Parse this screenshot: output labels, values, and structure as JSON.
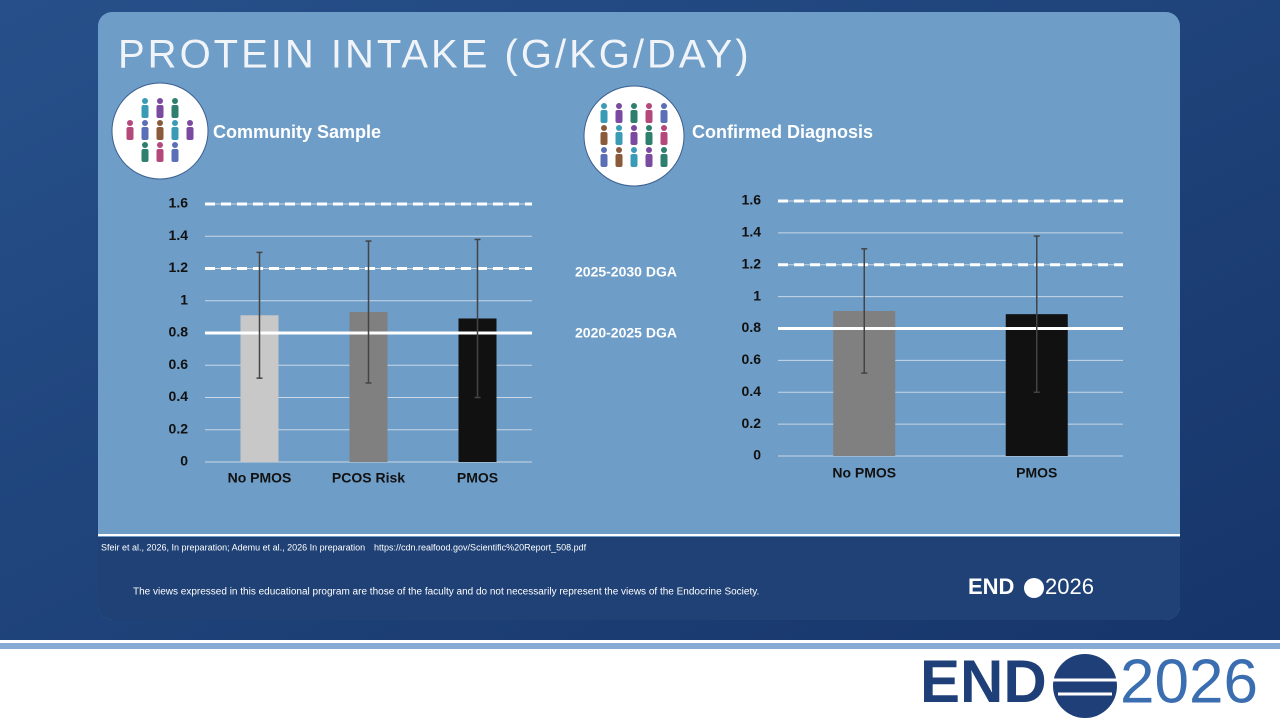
{
  "slide": {
    "title": "PROTEIN INTAKE (G/KG/DAY)",
    "annotations": [
      "2025-2030 DGA",
      "2020-2025 DGA"
    ],
    "citation": "Sfeir et al., 2026, In preparation; Ademu et al., 2026 In preparation",
    "url": "https://cdn.realfood.gov/Scientific%20Report_508.pdf",
    "disclaimer": "The views expressed in this educational program are those of the faculty and do not necessarily represent the views of the Endocrine Society.",
    "logo": {
      "left": "END",
      "right": "2026"
    }
  },
  "chart_data": [
    {
      "type": "bar",
      "title": "Community Sample",
      "categories": [
        "No PMOS",
        "PCOS Risk",
        "PMOS"
      ],
      "values": [
        0.91,
        0.93,
        0.89
      ],
      "errors": [
        0.39,
        0.44,
        0.49
      ],
      "colors": [
        "#c8c8c8",
        "#808080",
        "#111111"
      ],
      "ylim": [
        0,
        1.6
      ],
      "yticks": [
        0,
        0.2,
        0.4,
        0.6,
        0.8,
        1,
        1.2,
        1.4,
        1.6
      ],
      "grid": true,
      "reference_lines": [
        {
          "value": 1.6,
          "dashed": true
        },
        {
          "value": 1.2,
          "dashed": true
        },
        {
          "value": 0.8,
          "dashed": false
        }
      ]
    },
    {
      "type": "bar",
      "title": "Confirmed Diagnosis",
      "categories": [
        "No PMOS",
        "PMOS"
      ],
      "values": [
        0.91,
        0.89
      ],
      "errors": [
        0.39,
        0.49
      ],
      "colors": [
        "#808080",
        "#111111"
      ],
      "ylim": [
        0,
        1.6
      ],
      "yticks": [
        0,
        0.2,
        0.4,
        0.6,
        0.8,
        1,
        1.2,
        1.4,
        1.6
      ],
      "grid": true,
      "reference_lines": [
        {
          "value": 1.6,
          "dashed": true
        },
        {
          "value": 1.2,
          "dashed": true
        },
        {
          "value": 0.8,
          "dashed": false
        }
      ]
    }
  ]
}
